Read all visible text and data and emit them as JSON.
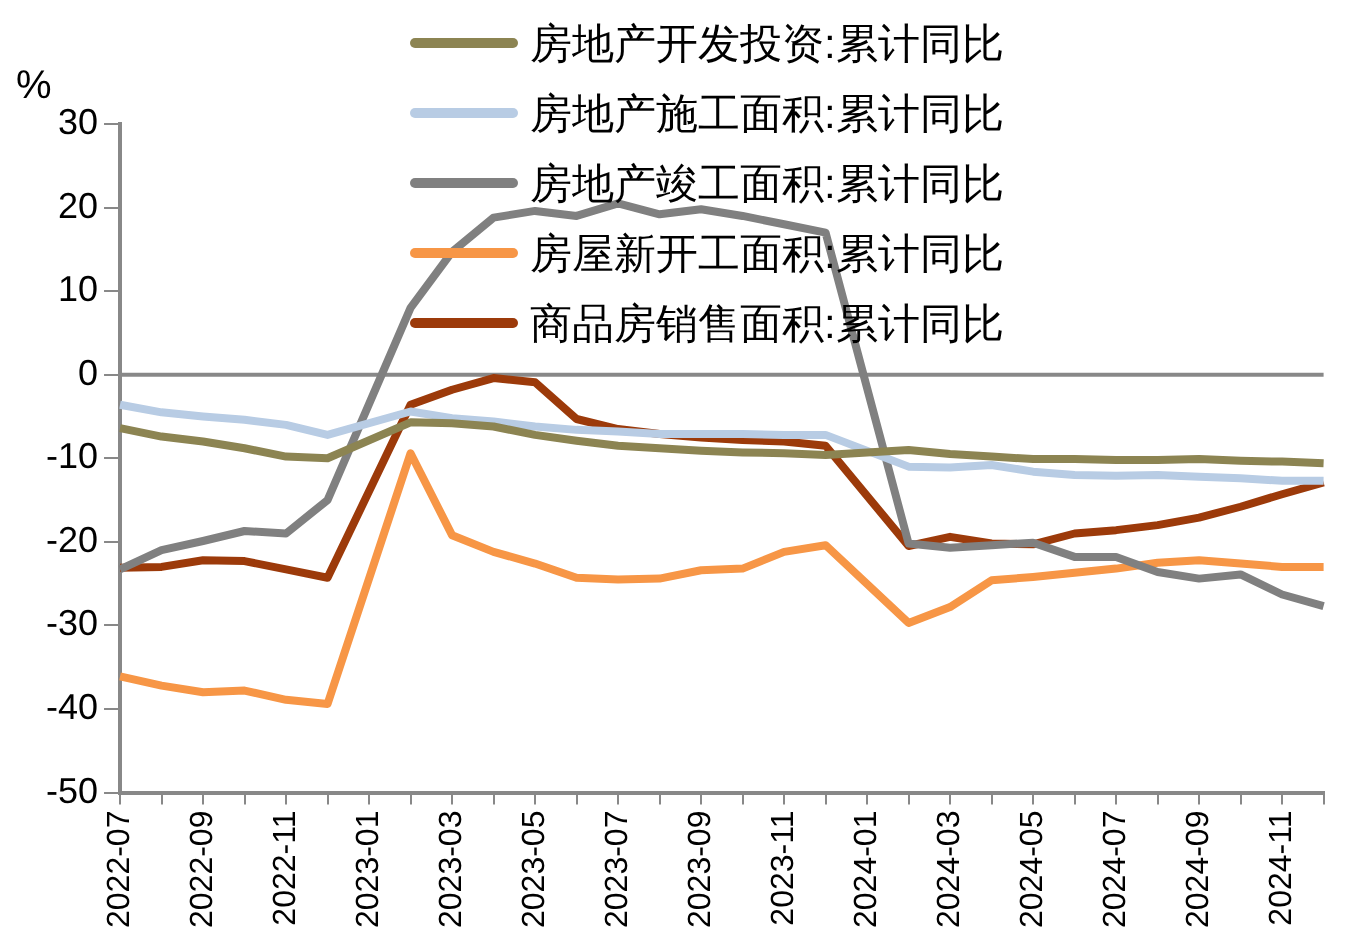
{
  "chart_data": {
    "type": "line",
    "ylabel": "%",
    "categories": [
      "2022-07",
      null,
      "2022-09",
      null,
      "2022-11",
      null,
      "2023-01",
      null,
      "2023-03",
      null,
      "2023-05",
      null,
      "2023-07",
      null,
      "2023-09",
      null,
      "2023-11",
      null,
      "2024-01",
      null,
      "2024-03",
      null,
      "2024-05",
      null,
      "2024-07",
      null,
      "2024-09",
      null,
      "2024-11",
      null
    ],
    "series": [
      {
        "name": "房地产开发投资:累计同比",
        "color": "#8c8452",
        "values": [
          -6.4,
          -7.4,
          -8.0,
          -8.8,
          -9.8,
          -10.0,
          null,
          -5.7,
          -5.8,
          -6.2,
          -7.2,
          -7.9,
          -8.5,
          -8.8,
          -9.1,
          -9.3,
          -9.4,
          -9.6,
          null,
          -9.0,
          -9.5,
          -9.8,
          -10.1,
          -10.1,
          -10.2,
          -10.2,
          -10.1,
          -10.3,
          -10.4,
          -10.6
        ]
      },
      {
        "name": "房地产施工面积:累计同比",
        "color": "#b8cce4",
        "values": [
          -3.6,
          -4.5,
          -5.0,
          -5.4,
          -6.0,
          -7.2,
          null,
          -4.4,
          -5.2,
          -5.6,
          -6.2,
          -6.6,
          -6.8,
          -7.1,
          -7.1,
          -7.1,
          -7.2,
          -7.2,
          null,
          -11.0,
          -11.1,
          -10.8,
          -11.6,
          -12.0,
          -12.1,
          -12.0,
          -12.2,
          -12.4,
          -12.7,
          -12.7
        ]
      },
      {
        "name": "房地产竣工面积:累计同比",
        "color": "#808080",
        "values": [
          -23.3,
          -21.0,
          -19.9,
          -18.7,
          -19.0,
          -15.0,
          null,
          8.0,
          14.7,
          18.8,
          19.6,
          19.0,
          20.5,
          19.2,
          19.8,
          19.0,
          18.0,
          17.0,
          null,
          -20.2,
          -20.7,
          -20.4,
          -20.1,
          -21.8,
          -21.8,
          -23.6,
          -24.4,
          -23.9,
          -26.3,
          -27.7
        ]
      },
      {
        "name": "房屋新开工面积:累计同比",
        "color": "#f79646",
        "values": [
          -36.1,
          -37.2,
          -38.0,
          -37.8,
          -38.9,
          -39.4,
          null,
          -9.4,
          -19.2,
          -21.2,
          -22.6,
          -24.3,
          -24.5,
          -24.4,
          -23.4,
          -23.2,
          -21.2,
          -20.4,
          null,
          -29.7,
          -27.8,
          -24.6,
          -24.2,
          -23.7,
          -23.2,
          -22.5,
          -22.2,
          -22.6,
          -23.0,
          -23.0
        ]
      },
      {
        "name": "商品房销售面积:累计同比",
        "color": "#9c3a0a",
        "values": [
          -23.1,
          -23.0,
          -22.2,
          -22.3,
          -23.3,
          -24.3,
          null,
          -3.6,
          -1.8,
          -0.4,
          -0.9,
          -5.3,
          -6.5,
          -7.1,
          -7.5,
          -7.8,
          -8.0,
          -8.5,
          null,
          -20.5,
          -19.4,
          -20.2,
          -20.3,
          -19.0,
          -18.6,
          -18.0,
          -17.1,
          -15.8,
          -14.3,
          -12.9
        ]
      }
    ],
    "ylim": [
      -50,
      30
    ],
    "yticks": [
      -50,
      -40,
      -30,
      -20,
      -10,
      0,
      10,
      20,
      30
    ],
    "ref_lines": [
      {
        "axis": "y",
        "value": 0,
        "color": "#888888"
      }
    ],
    "grid": false,
    "legend": "top",
    "marker": "none",
    "line_style": "solid"
  }
}
